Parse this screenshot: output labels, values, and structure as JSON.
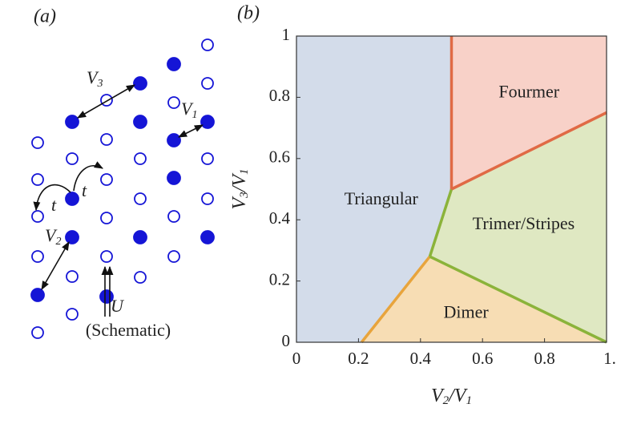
{
  "schematic": {
    "label": "(a)",
    "V3": {
      "text": "V",
      "sub": "3"
    },
    "V1": {
      "text": "V",
      "sub": "1"
    },
    "V2": {
      "text": "V",
      "sub": "2"
    },
    "t_upper": "t",
    "t_lower": "t",
    "U": "U",
    "caption": "(Schematic)"
  },
  "chart_data": {
    "type": "phase-diagram",
    "panel_label": "(b)",
    "x_label": [
      {
        "text": "V",
        "sub": "2"
      },
      {
        "text": "/V",
        "sub": "1"
      }
    ],
    "y_label": [
      {
        "text": "V",
        "sub": "3"
      },
      {
        "text": "/V",
        "sub": "1"
      }
    ],
    "xlim": [
      0,
      1
    ],
    "ylim": [
      0,
      1
    ],
    "xticks": [
      0,
      0.2,
      0.4,
      0.6,
      0.8,
      {
        "value": 1,
        "label": "1."
      }
    ],
    "yticks": [
      0,
      0.2,
      0.4,
      0.6,
      0.8,
      1
    ],
    "regions": [
      {
        "name": "Triangular",
        "color": "#d3dcea",
        "x": [
          0,
          0.21,
          0.43,
          0.5,
          0.5,
          0
        ],
        "y": [
          0,
          0,
          0.28,
          0.5,
          1,
          1
        ]
      },
      {
        "name": "Dimer",
        "color": "#f7ddb4",
        "x": [
          0.21,
          1,
          0.43
        ],
        "y": [
          0,
          0,
          0.28
        ]
      },
      {
        "name": "Trimer/Stripes",
        "color": "#dfe8c2",
        "x": [
          0.43,
          1,
          1,
          0.5
        ],
        "y": [
          0.28,
          0,
          0.75,
          0.5
        ]
      },
      {
        "name": "Fourmer",
        "color": "#f8d1c8",
        "x": [
          0.5,
          1,
          1,
          0.5
        ],
        "y": [
          0.5,
          0.75,
          1,
          1
        ]
      }
    ],
    "boundaries": [
      {
        "color": "#e8a43c",
        "x": [
          0.21,
          0.43
        ],
        "y": [
          0,
          0.28
        ]
      },
      {
        "color": "#8bb33a",
        "x": [
          0.43,
          0.5
        ],
        "y": [
          0.28,
          0.5
        ]
      },
      {
        "color": "#8bb33a",
        "x": [
          0.43,
          1
        ],
        "y": [
          0.28,
          0
        ]
      },
      {
        "color": "#e06a45",
        "x": [
          0.5,
          1
        ],
        "y": [
          0.5,
          0.75
        ]
      },
      {
        "color": "#e06a45",
        "x": [
          0.5,
          0.5
        ],
        "y": [
          0.5,
          1
        ]
      }
    ]
  }
}
